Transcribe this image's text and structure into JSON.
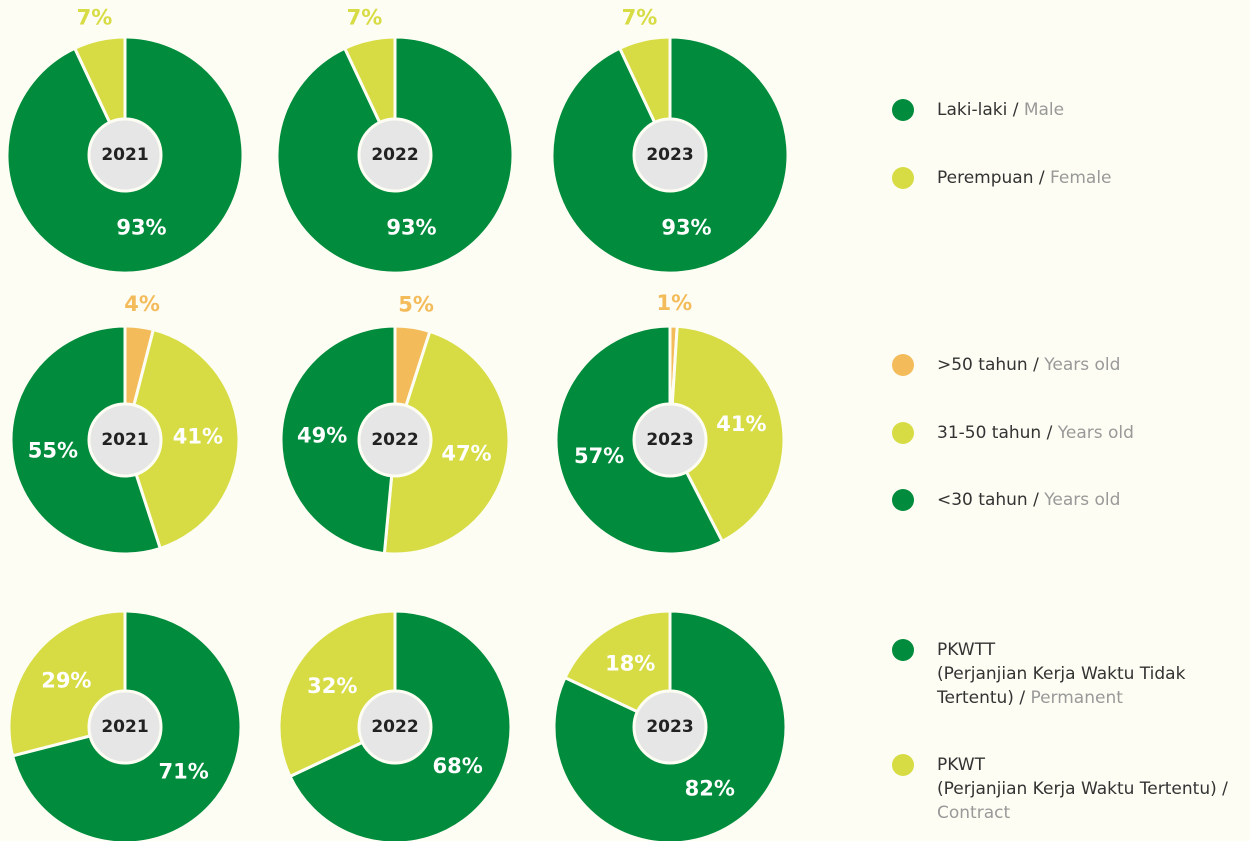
{
  "chart_data": [
    {
      "type": "pie",
      "categories": [
        {
          "name": "Laki-laki /",
          "name_en": "Male"
        },
        {
          "name": "Perempuan /",
          "name_en": "Female"
        }
      ],
      "colors": [
        "#008c3c",
        "#d7dc44"
      ],
      "series": [
        {
          "name": "2021",
          "values": [
            93,
            7
          ],
          "value_labels": [
            "93%",
            "7%"
          ]
        },
        {
          "name": "2022",
          "values": [
            93,
            7
          ],
          "value_labels": [
            "93%",
            "7%"
          ]
        },
        {
          "name": "2023",
          "values": [
            93,
            7
          ],
          "value_labels": [
            "93%",
            "7%"
          ]
        }
      ]
    },
    {
      "type": "pie",
      "categories": [
        {
          "name": ">50 tahun /",
          "name_en": "Years old"
        },
        {
          "name": "31-50 tahun /",
          "name_en": "Years old"
        },
        {
          "name": "<30 tahun /",
          "name_en": "Years old"
        }
      ],
      "colors": [
        "#f3bb5a",
        "#d7dc44",
        "#008c3c"
      ],
      "series": [
        {
          "name": "2021",
          "values": [
            4,
            41,
            55
          ],
          "value_labels": [
            "4%",
            "41%",
            "55%"
          ]
        },
        {
          "name": "2022",
          "values": [
            5,
            47,
            49
          ],
          "value_labels": [
            "5%",
            "47%",
            "49%"
          ]
        },
        {
          "name": "2023",
          "values": [
            1,
            41,
            57
          ],
          "value_labels": [
            "1%",
            "41%",
            "57%"
          ]
        }
      ]
    },
    {
      "type": "pie",
      "categories": [
        {
          "name": "PKWTT\n(Perjanjian Kerja Waktu Tidak Tertentu) /",
          "name_en": "Permanent"
        },
        {
          "name": "PKWT\n(Perjanjian Kerja Waktu Tertentu) /",
          "name_en": "Contract"
        }
      ],
      "colors": [
        "#008c3c",
        "#d7dc44"
      ],
      "series": [
        {
          "name": "2021",
          "values": [
            71,
            29
          ],
          "value_labels": [
            "71%",
            "29%"
          ]
        },
        {
          "name": "2022",
          "values": [
            68,
            32
          ],
          "value_labels": [
            "68%",
            "32%"
          ]
        },
        {
          "name": "2023",
          "values": [
            82,
            18
          ],
          "value_labels": [
            "82%",
            "18%"
          ]
        }
      ]
    }
  ]
}
